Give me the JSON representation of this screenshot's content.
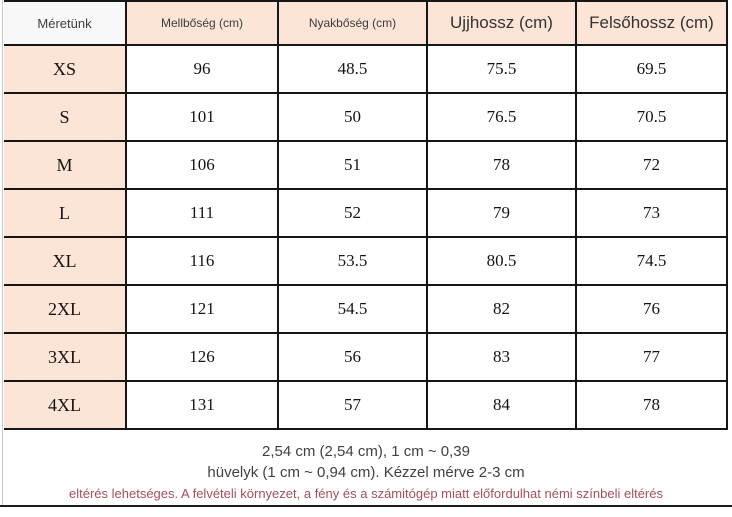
{
  "page": {
    "background": "#ffffff",
    "accent_pink": "#fce4d6",
    "border_color": "#161616",
    "note_warn_color": "#a4505b"
  },
  "table": {
    "columns": [
      {
        "label": "Méretünk"
      },
      {
        "label": "Mellbőség (cm)"
      },
      {
        "label": "Nyakbőség (cm)"
      },
      {
        "label": "Ujjhossz (cm)"
      },
      {
        "label": "Felsőhossz (cm)"
      }
    ],
    "rows": [
      {
        "size": "XS",
        "chest": "96",
        "neck": "48.5",
        "sleeve": "75.5",
        "top": "69.5"
      },
      {
        "size": "S",
        "chest": "101",
        "neck": "50",
        "sleeve": "76.5",
        "top": "70.5"
      },
      {
        "size": "M",
        "chest": "106",
        "neck": "51",
        "sleeve": "78",
        "top": "72"
      },
      {
        "size": "L",
        "chest": "111",
        "neck": "52",
        "sleeve": "79",
        "top": "73"
      },
      {
        "size": "XL",
        "chest": "116",
        "neck": "53.5",
        "sleeve": "80.5",
        "top": "74.5"
      },
      {
        "size": "2XL",
        "chest": "121",
        "neck": "54.5",
        "sleeve": "82",
        "top": "76"
      },
      {
        "size": "3XL",
        "chest": "126",
        "neck": "56",
        "sleeve": "83",
        "top": "77"
      },
      {
        "size": "4XL",
        "chest": "131",
        "neck": "57",
        "sleeve": "84",
        "top": "78"
      }
    ]
  },
  "notes": {
    "line1": "2,54 cm (2,54 cm), 1 cm ~ 0,39",
    "line2": "hüvelyk (1 cm ~ 0,94 cm). Kézzel mérve 2-3 cm",
    "line3": "eltérés lehetséges. A felvételi környezet, a fény és a számitógép miatt előfordulhat némi színbeli eltérés"
  }
}
